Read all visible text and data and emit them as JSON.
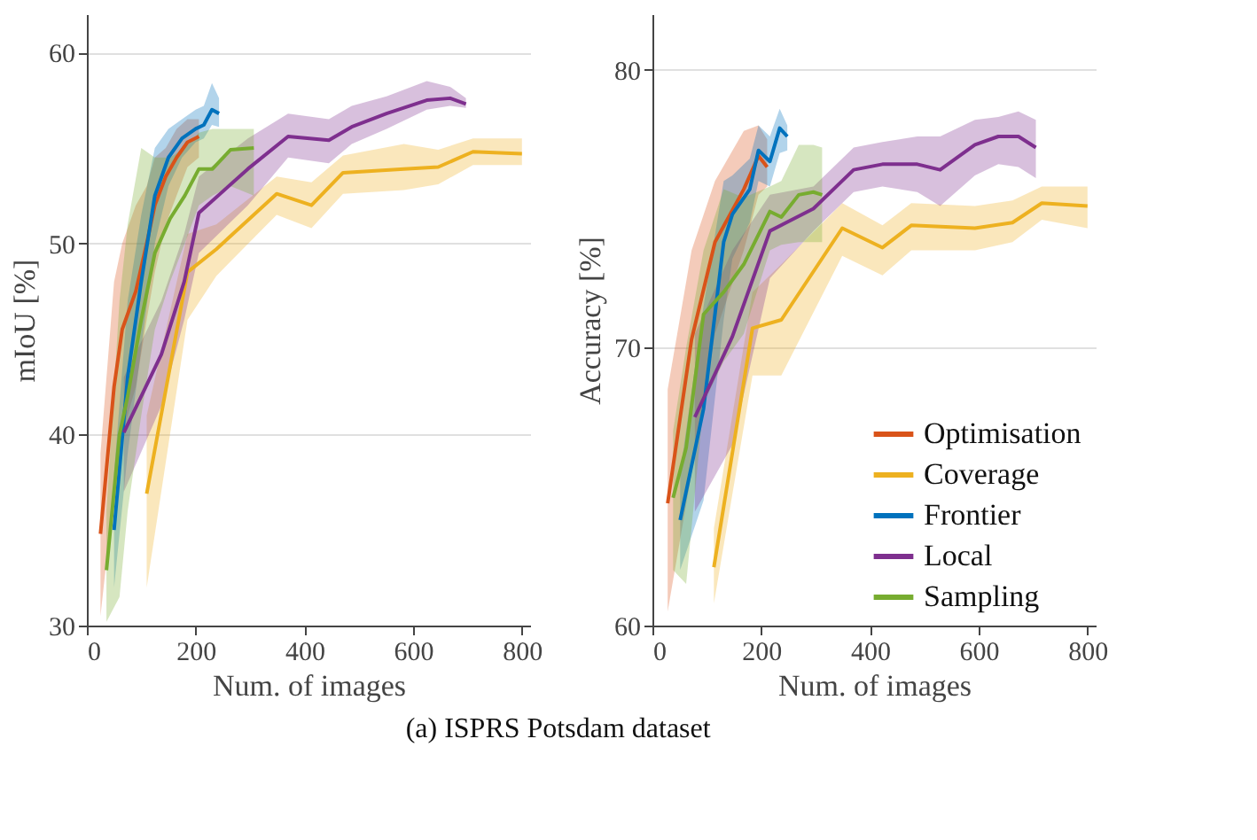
{
  "chart_data": [
    {
      "type": "line",
      "xlabel": "Num. of images",
      "ylabel": "mIoU [%]",
      "xlim": [
        0,
        815
      ],
      "ylim": [
        30,
        62
      ],
      "xticks": [
        0,
        200,
        400,
        600,
        800
      ],
      "yticks": [
        30,
        40,
        50,
        60
      ],
      "grid": "y",
      "legend": false,
      "line_style": "solid",
      "annotations": [
        "(a) ISPRS Potsdam dataset"
      ],
      "series": [
        {
          "color": "#d95319",
          "x": [
            25,
            50,
            65,
            90,
            110,
            125,
            145,
            165,
            185,
            206
          ],
          "values": [
            34.8,
            42.5,
            45.5,
            47.5,
            50,
            52,
            53.5,
            54.5,
            55.3,
            55.6
          ],
          "lower": [
            30.5,
            37,
            40,
            42.5,
            46,
            48.5,
            51,
            52.5,
            54,
            54.5
          ],
          "upper": [
            39,
            48,
            50,
            52,
            53,
            54.5,
            55,
            56,
            56.5,
            56.5
          ]
        },
        {
          "color": "#edb120",
          "x": [
            110,
            185,
            238,
            349,
            413,
            471,
            583,
            646,
            710,
            800
          ],
          "values": [
            36.9,
            48.5,
            49.7,
            52.6,
            52.0,
            53.7,
            53.9,
            54.0,
            54.8,
            54.7
          ],
          "lower": [
            32,
            46,
            48.3,
            51.5,
            50.8,
            52.6,
            52.8,
            53.1,
            54.1,
            54.1
          ],
          "upper": [
            41,
            50.5,
            51,
            53.5,
            53.2,
            54.6,
            55.2,
            54.9,
            55.5,
            55.5
          ]
        },
        {
          "color": "#0072bd",
          "x": [
            50,
            75,
            100,
            125,
            150,
            175,
            200,
            215,
            230,
            243
          ],
          "values": [
            35,
            43,
            48,
            52.5,
            54.5,
            55.5,
            56,
            56.2,
            57,
            56.8
          ],
          "lower": [
            32,
            39,
            44.5,
            50,
            53,
            54.5,
            55.3,
            55.5,
            56.2,
            56.1
          ],
          "upper": [
            38,
            47,
            51.5,
            55,
            56,
            56.5,
            57,
            57.2,
            58.4,
            57.6
          ]
        },
        {
          "color": "#7e2f8e",
          "x": [
            68,
            137,
            179,
            206,
            296,
            370,
            445,
            487,
            551,
            625,
            668,
            697
          ],
          "values": [
            40.1,
            44.2,
            48,
            51.6,
            53.9,
            55.6,
            55.4,
            56.1,
            56.8,
            57.5,
            57.6,
            57.3
          ],
          "lower": [
            37,
            41.5,
            46,
            49.5,
            52,
            54.5,
            54.2,
            55.2,
            56,
            57,
            57.2,
            57.1
          ],
          "upper": [
            43,
            47,
            50.5,
            53.5,
            55.5,
            56.8,
            56.5,
            57.2,
            57.7,
            58.5,
            58.2,
            57.6
          ]
        },
        {
          "color": "#77ac30",
          "x": [
            36,
            60,
            75,
            100,
            125,
            153,
            180,
            206,
            231,
            264,
            307
          ],
          "values": [
            32.9,
            40,
            42,
            46,
            49.5,
            51.3,
            52.5,
            53.9,
            53.9,
            54.9,
            55.0
          ],
          "lower": [
            30.2,
            31.5,
            36,
            41,
            45.5,
            48,
            50,
            52,
            52.5,
            53,
            52.5
          ],
          "upper": [
            36,
            47,
            51,
            55,
            54.5,
            54.5,
            55,
            55.8,
            56,
            56,
            56
          ]
        }
      ]
    },
    {
      "type": "line",
      "xlabel": "Num. of images",
      "ylabel": "Accuracy [%]",
      "xlim": [
        0,
        815
      ],
      "ylim": [
        60,
        82
      ],
      "xticks": [
        0,
        200,
        400,
        600,
        800
      ],
      "yticks": [
        60,
        70,
        80
      ],
      "grid": "y",
      "legend": "bottom right",
      "line_style": "solid",
      "series": [
        {
          "name": "Optimisation",
          "color": "#d95319",
          "x": [
            28,
            72,
            115,
            168,
            195,
            211
          ],
          "values": [
            64.4,
            70.3,
            73.8,
            75.7,
            76.9,
            76.5
          ],
          "lower": [
            60.5,
            65.5,
            70.5,
            73.5,
            75.5,
            75.8
          ],
          "upper": [
            68.5,
            73.5,
            76,
            77.8,
            78,
            77.5
          ]
        },
        {
          "name": "Coverage",
          "color": "#edb120",
          "x": [
            113,
            184,
            237,
            349,
            423,
            476,
            593,
            662,
            716,
            800
          ],
          "values": [
            62.1,
            70.7,
            71.0,
            74.3,
            73.6,
            74.4,
            74.3,
            74.5,
            75.2,
            75.1
          ],
          "lower": [
            60.8,
            69,
            69,
            73.3,
            72.6,
            73.5,
            73.5,
            73.8,
            74.6,
            74.3
          ],
          "upper": [
            63.5,
            72,
            73,
            75.2,
            74.4,
            75.2,
            75.1,
            75.3,
            75.8,
            75.8
          ]
        },
        {
          "name": "Frontier",
          "color": "#0072bd",
          "x": [
            51,
            94,
            131,
            147,
            179,
            195,
            216,
            234,
            248
          ],
          "values": [
            63.8,
            67.8,
            73.8,
            74.8,
            75.7,
            77.1,
            76.7,
            77.9,
            77.6
          ],
          "lower": [
            62,
            64.5,
            71,
            73.2,
            74.5,
            76,
            75.8,
            77,
            77.1
          ],
          "upper": [
            65.5,
            71.5,
            76,
            76.2,
            76.8,
            78,
            77.6,
            78.6,
            78
          ]
        },
        {
          "name": "Local",
          "color": "#7e2f8e",
          "x": [
            78,
            147,
            216,
            296,
            370,
            423,
            487,
            529,
            593,
            636,
            673,
            705
          ],
          "values": [
            67.5,
            70.4,
            74.2,
            75.0,
            76.4,
            76.6,
            76.6,
            76.4,
            77.3,
            77.6,
            77.6,
            77.2
          ],
          "lower": [
            64.1,
            66.5,
            72.5,
            74.2,
            75.6,
            75.8,
            75.6,
            75.1,
            76.2,
            76.6,
            76.5,
            76.1
          ],
          "upper": [
            70.5,
            73.5,
            75.5,
            75.8,
            77.2,
            77.4,
            77.6,
            77.6,
            78.2,
            78.3,
            78.5,
            78.2
          ]
        },
        {
          "name": "Sampling",
          "color": "#77ac30",
          "x": [
            38,
            62,
            94,
            131,
            168,
            216,
            237,
            269,
            296,
            312
          ],
          "values": [
            64.6,
            66.4,
            71.2,
            72.0,
            73.0,
            74.9,
            74.7,
            75.5,
            75.6,
            75.5
          ],
          "lower": [
            62,
            61.5,
            68,
            69.5,
            70.5,
            73.5,
            73.7,
            73.8,
            73.8,
            73.8
          ],
          "upper": [
            67,
            70,
            73.5,
            75.7,
            75.4,
            75.8,
            76,
            77.3,
            77.3,
            77.2
          ]
        }
      ]
    }
  ]
}
